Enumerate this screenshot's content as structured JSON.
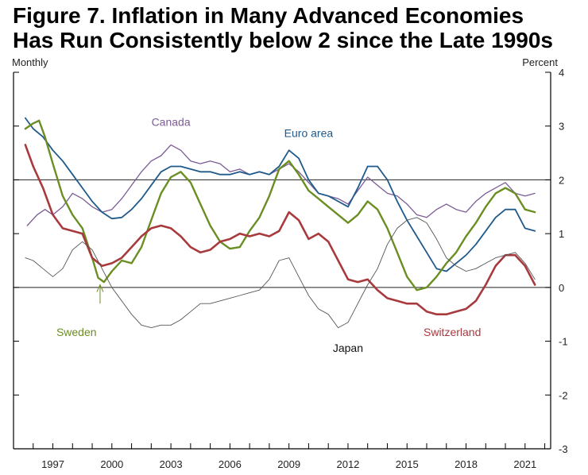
{
  "title_lines": [
    "Figure 7. Inflation in Many Advanced Economies",
    "Has Run Consistently below 2 since the Late 1990s"
  ],
  "chart_data": {
    "type": "line",
    "title": "Figure 7. Inflation in Many Advanced Economies Has Run Consistently below 2 since the Late 1990s",
    "frequency_label": "Monthly",
    "unit_label": "Percent",
    "xlim": [
      1995.0,
      2022.3
    ],
    "ylim": [
      -3,
      4
    ],
    "x_ticks": [
      1997,
      2000,
      2003,
      2006,
      2009,
      2012,
      2015,
      2018,
      2021
    ],
    "x_tick_labels": [
      "1997",
      "2000",
      "2003",
      "2006",
      "2009",
      "2012",
      "2015",
      "2018",
      "2021"
    ],
    "y_ticks": [
      -3,
      -2,
      -1,
      0,
      1,
      2,
      3,
      4
    ],
    "y_tick_labels": [
      "-3",
      "-2",
      "-1",
      "0",
      "1",
      "2",
      "3",
      "4"
    ],
    "reference_lines": [
      0,
      2
    ],
    "series": [
      {
        "name": "Canada",
        "color": "#7b5c96",
        "width": 1.3,
        "x": [
          1995.7,
          1996.2,
          1996.6,
          1997.0,
          1997.5,
          1998.0,
          1998.5,
          1999.0,
          1999.5,
          2000.0,
          2000.5,
          2001.0,
          2001.5,
          2002.0,
          2002.5,
          2003.0,
          2003.5,
          2004.0,
          2004.5,
          2005.0,
          2005.5,
          2006.0,
          2006.5,
          2007.0,
          2007.5,
          2008.0,
          2008.5,
          2009.0,
          2009.5,
          2010.0,
          2010.5,
          2011.0,
          2011.5,
          2012.0,
          2012.5,
          2013.0,
          2013.5,
          2014.0,
          2014.5,
          2015.0,
          2015.5,
          2016.0,
          2016.5,
          2017.0,
          2017.5,
          2018.0,
          2018.5,
          2019.0,
          2019.5,
          2020.0,
          2020.5,
          2021.0,
          2021.5
        ],
        "y": [
          1.15,
          1.35,
          1.45,
          1.35,
          1.5,
          1.75,
          1.65,
          1.5,
          1.4,
          1.45,
          1.65,
          1.9,
          2.15,
          2.35,
          2.45,
          2.65,
          2.55,
          2.35,
          2.3,
          2.35,
          2.3,
          2.15,
          2.2,
          2.1,
          2.15,
          2.1,
          2.2,
          2.3,
          2.15,
          1.95,
          1.75,
          1.7,
          1.65,
          1.55,
          1.8,
          2.05,
          1.9,
          1.75,
          1.7,
          1.55,
          1.35,
          1.3,
          1.45,
          1.55,
          1.45,
          1.4,
          1.6,
          1.75,
          1.85,
          1.95,
          1.75,
          1.7,
          1.75
        ]
      },
      {
        "name": "Euro area",
        "color": "#1f5a8c",
        "width": 1.8,
        "x": [
          1995.6,
          1996.0,
          1996.5,
          1997.0,
          1997.5,
          1998.0,
          1998.5,
          1999.0,
          1999.5,
          2000.0,
          2000.5,
          2001.0,
          2001.5,
          2002.0,
          2002.5,
          2003.0,
          2003.5,
          2004.0,
          2004.5,
          2005.0,
          2005.5,
          2006.0,
          2006.5,
          2007.0,
          2007.5,
          2008.0,
          2008.5,
          2009.0,
          2009.5,
          2010.0,
          2010.5,
          2011.0,
          2011.5,
          2012.0,
          2012.5,
          2013.0,
          2013.5,
          2014.0,
          2014.5,
          2015.0,
          2015.5,
          2016.0,
          2016.5,
          2017.0,
          2017.5,
          2018.0,
          2018.5,
          2019.0,
          2019.5,
          2020.0,
          2020.5,
          2021.0,
          2021.5
        ],
        "y": [
          3.15,
          2.95,
          2.8,
          2.55,
          2.35,
          2.1,
          1.85,
          1.6,
          1.4,
          1.28,
          1.3,
          1.45,
          1.65,
          1.9,
          2.15,
          2.25,
          2.25,
          2.2,
          2.15,
          2.15,
          2.1,
          2.1,
          2.15,
          2.1,
          2.15,
          2.1,
          2.25,
          2.55,
          2.4,
          2.0,
          1.75,
          1.7,
          1.6,
          1.5,
          1.85,
          2.25,
          2.25,
          2.0,
          1.6,
          1.25,
          0.95,
          0.65,
          0.35,
          0.3,
          0.45,
          0.6,
          0.8,
          1.05,
          1.3,
          1.45,
          1.45,
          1.1,
          1.05
        ]
      },
      {
        "name": "Sweden",
        "color": "#6b8e23",
        "width": 2.4,
        "x": [
          1995.6,
          1996.0,
          1996.3,
          1996.6,
          1997.0,
          1997.5,
          1998.0,
          1998.5,
          1999.0,
          1999.3,
          1999.6,
          2000.0,
          2000.5,
          2001.0,
          2001.5,
          2002.0,
          2002.5,
          2003.0,
          2003.5,
          2004.0,
          2004.5,
          2005.0,
          2005.5,
          2006.0,
          2006.5,
          2007.0,
          2007.5,
          2008.0,
          2008.5,
          2009.0,
          2009.5,
          2010.0,
          2010.5,
          2011.0,
          2011.5,
          2012.0,
          2012.5,
          2013.0,
          2013.5,
          2014.0,
          2014.5,
          2015.0,
          2015.5,
          2016.0,
          2016.5,
          2017.0,
          2017.5,
          2018.0,
          2018.5,
          2019.0,
          2019.5,
          2020.0,
          2020.5,
          2021.0,
          2021.5
        ],
        "y": [
          2.95,
          3.05,
          3.1,
          2.8,
          2.3,
          1.7,
          1.35,
          1.1,
          0.55,
          0.18,
          0.1,
          0.3,
          0.5,
          0.45,
          0.75,
          1.25,
          1.75,
          2.05,
          2.15,
          1.95,
          1.55,
          1.15,
          0.85,
          0.72,
          0.75,
          1.05,
          1.3,
          1.7,
          2.2,
          2.35,
          2.1,
          1.8,
          1.65,
          1.5,
          1.35,
          1.2,
          1.35,
          1.6,
          1.45,
          1.1,
          0.65,
          0.2,
          -0.05,
          0.0,
          0.2,
          0.45,
          0.65,
          0.95,
          1.2,
          1.5,
          1.75,
          1.85,
          1.75,
          1.45,
          1.4
        ]
      },
      {
        "name": "Switzerland",
        "color": "#a83a3e",
        "width": 2.6,
        "x": [
          1995.6,
          1996.0,
          1996.5,
          1997.0,
          1997.5,
          1998.0,
          1998.5,
          1999.0,
          1999.5,
          2000.0,
          2000.5,
          2001.0,
          2001.5,
          2002.0,
          2002.5,
          2003.0,
          2003.5,
          2004.0,
          2004.5,
          2005.0,
          2005.5,
          2006.0,
          2006.5,
          2007.0,
          2007.5,
          2008.0,
          2008.5,
          2009.0,
          2009.5,
          2010.0,
          2010.5,
          2011.0,
          2011.5,
          2012.0,
          2012.5,
          2013.0,
          2013.5,
          2014.0,
          2014.5,
          2015.0,
          2015.5,
          2016.0,
          2016.5,
          2017.0,
          2017.5,
          2018.0,
          2018.5,
          2019.0,
          2019.5,
          2020.0,
          2020.5,
          2021.0,
          2021.5
        ],
        "y": [
          2.65,
          2.25,
          1.85,
          1.35,
          1.1,
          1.05,
          1.0,
          0.55,
          0.4,
          0.45,
          0.55,
          0.75,
          0.95,
          1.1,
          1.15,
          1.1,
          0.95,
          0.75,
          0.65,
          0.7,
          0.85,
          0.9,
          1.0,
          0.95,
          1.0,
          0.95,
          1.05,
          1.4,
          1.25,
          0.9,
          1.0,
          0.85,
          0.5,
          0.15,
          0.1,
          0.15,
          -0.05,
          -0.2,
          -0.25,
          -0.3,
          -0.3,
          -0.45,
          -0.5,
          -0.5,
          -0.45,
          -0.4,
          -0.25,
          0.05,
          0.4,
          0.6,
          0.6,
          0.4,
          0.05
        ]
      },
      {
        "name": "Japan",
        "color": "#555555",
        "width": 0.9,
        "x": [
          1995.6,
          1996.0,
          1996.5,
          1997.0,
          1997.5,
          1998.0,
          1998.5,
          1999.0,
          1999.5,
          2000.0,
          2000.5,
          2001.0,
          2001.5,
          2002.0,
          2002.5,
          2003.0,
          2003.5,
          2004.0,
          2004.5,
          2005.0,
          2005.5,
          2006.0,
          2006.5,
          2007.0,
          2007.5,
          2008.0,
          2008.5,
          2009.0,
          2009.5,
          2010.0,
          2010.5,
          2011.0,
          2011.5,
          2012.0,
          2012.5,
          2013.0,
          2013.5,
          2014.0,
          2014.5,
          2015.0,
          2015.5,
          2016.0,
          2016.5,
          2017.0,
          2017.5,
          2018.0,
          2018.5,
          2019.0,
          2019.5,
          2020.0,
          2020.5,
          2021.0,
          2021.5
        ],
        "y": [
          0.55,
          0.5,
          0.35,
          0.2,
          0.35,
          0.7,
          0.85,
          0.7,
          0.35,
          0.0,
          -0.25,
          -0.5,
          -0.7,
          -0.75,
          -0.7,
          -0.7,
          -0.6,
          -0.45,
          -0.3,
          -0.3,
          -0.25,
          -0.2,
          -0.15,
          -0.1,
          -0.05,
          0.15,
          0.5,
          0.55,
          0.2,
          -0.15,
          -0.4,
          -0.5,
          -0.75,
          -0.65,
          -0.3,
          0.05,
          0.35,
          0.8,
          1.1,
          1.25,
          1.3,
          1.2,
          0.9,
          0.55,
          0.4,
          0.3,
          0.35,
          0.45,
          0.55,
          0.6,
          0.65,
          0.45,
          0.15
        ]
      }
    ],
    "series_labels": [
      {
        "name": "Canada",
        "at": [
          2003.0,
          3.0
        ]
      },
      {
        "name": "Euro area",
        "at": [
          2010.0,
          2.8
        ]
      },
      {
        "name": "Sweden",
        "at": [
          1998.2,
          -0.9
        ]
      },
      {
        "name": "Switzerland",
        "at": [
          2017.3,
          -0.9
        ]
      },
      {
        "name": "Japan",
        "at": [
          2012.0,
          -1.2
        ]
      }
    ],
    "annotations": [
      {
        "type": "arrow",
        "series": "Sweden",
        "from": [
          1999.4,
          -0.3
        ],
        "to": [
          1999.4,
          0.05
        ]
      }
    ]
  }
}
